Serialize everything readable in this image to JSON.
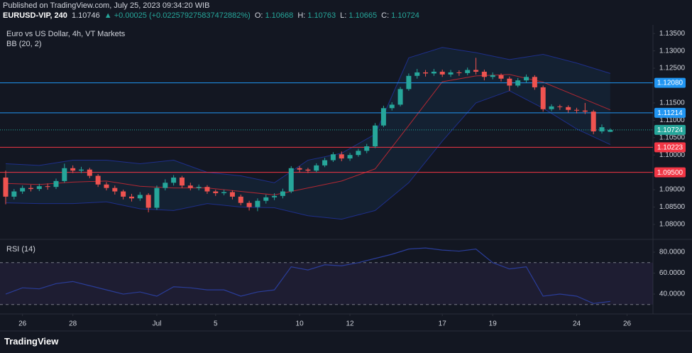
{
  "header": {
    "published": "Published on TradingView.com, July 25, 2023 09:34:20 WIB",
    "symbol": "EURUSD-VIP, 240",
    "last": "1.10746",
    "change": "▲ +0.00025 (+0.022579275837472882%)",
    "ohlc": [
      {
        "label": "O:",
        "value": "1.10668"
      },
      {
        "label": "H:",
        "value": "1.10763"
      },
      {
        "label": "L:",
        "value": "1.10665"
      },
      {
        "label": "C:",
        "value": "1.10724"
      }
    ]
  },
  "footer": {
    "brand": "TradingView"
  },
  "chart_data": [
    {
      "type": "candlestick",
      "title": "Euro vs US Dollar, 4h, VT Markets",
      "indicator": "BB (20, 2)",
      "up_color": "#26a69a",
      "down_color": "#ef5350",
      "open": [
        1.0935,
        1.088,
        1.0895,
        1.0905,
        1.0902,
        1.091,
        1.0908,
        1.0925,
        1.0962,
        1.0955,
        1.0958,
        1.094,
        1.0915,
        1.0905,
        1.0895,
        1.088,
        1.0875,
        1.0885,
        1.0848,
        1.0905,
        1.092,
        1.0935,
        1.0912,
        1.0905,
        1.0908,
        1.0895,
        1.089,
        1.0893,
        1.088,
        1.0862,
        1.085,
        1.0868,
        1.0878,
        1.0882,
        1.0895,
        1.0962,
        1.0958,
        1.0955,
        1.097,
        1.0985,
        1.1002,
        1.099,
        1.1,
        1.1012,
        1.1025,
        1.1085,
        1.1135,
        1.1145,
        1.119,
        1.1228,
        1.1238,
        1.1235,
        1.124,
        1.1232,
        1.1238,
        1.1236,
        1.1245,
        1.124,
        1.1225,
        1.123,
        1.122,
        1.12,
        1.1215,
        1.1225,
        1.1195,
        1.1132,
        1.114,
        1.1138,
        1.113,
        1.1128,
        1.1125,
        1.1068,
        1.10668
      ],
      "high": [
        1.0955,
        1.0902,
        1.0912,
        1.0914,
        1.0917,
        1.0918,
        1.0932,
        1.0975,
        1.097,
        1.0966,
        1.0963,
        1.0945,
        1.0922,
        1.0912,
        1.09,
        1.0888,
        1.0893,
        1.089,
        1.0912,
        1.093,
        1.0942,
        1.094,
        1.092,
        1.0915,
        1.0913,
        1.09,
        1.09,
        1.0898,
        1.0886,
        1.0868,
        1.0875,
        1.0886,
        1.089,
        1.0903,
        1.0968,
        1.0968,
        1.0963,
        1.0976,
        1.0992,
        1.1008,
        1.101,
        1.1006,
        1.1018,
        1.1032,
        1.1092,
        1.1142,
        1.1152,
        1.1196,
        1.1235,
        1.1248,
        1.1245,
        1.1248,
        1.1246,
        1.1245,
        1.1244,
        1.1252,
        1.128,
        1.1246,
        1.1238,
        1.1235,
        1.1226,
        1.1222,
        1.1232,
        1.123,
        1.12,
        1.1146,
        1.1145,
        1.1143,
        1.1136,
        1.115,
        1.113,
        1.1088,
        1.10763
      ],
      "low": [
        1.0858,
        1.0872,
        1.0888,
        1.0895,
        1.0896,
        1.09,
        1.0902,
        1.092,
        1.0948,
        1.0948,
        1.0933,
        1.0908,
        1.0898,
        1.0886,
        1.0872,
        1.0866,
        1.0868,
        1.0835,
        1.0842,
        1.0898,
        1.0912,
        1.0905,
        1.0898,
        1.0898,
        1.0888,
        1.0882,
        1.0884,
        1.0872,
        1.0855,
        1.084,
        1.0838,
        1.086,
        1.087,
        1.0875,
        1.089,
        1.095,
        1.0948,
        1.095,
        1.0965,
        1.098,
        1.0982,
        1.0983,
        1.0995,
        1.1005,
        1.102,
        1.108,
        1.1128,
        1.114,
        1.1185,
        1.122,
        1.1226,
        1.1228,
        1.1225,
        1.1225,
        1.1228,
        1.123,
        1.1232,
        1.1215,
        1.1218,
        1.1212,
        1.1185,
        1.1195,
        1.1208,
        1.1188,
        1.1125,
        1.1126,
        1.113,
        1.1122,
        1.112,
        1.1118,
        1.106,
        1.1062,
        1.10665
      ],
      "close": [
        1.088,
        1.0895,
        1.0905,
        1.0902,
        1.091,
        1.0908,
        1.0925,
        1.0962,
        1.0955,
        1.0958,
        1.094,
        1.0915,
        1.0905,
        1.0895,
        1.088,
        1.0875,
        1.0885,
        1.0848,
        1.0905,
        1.092,
        1.0935,
        1.0912,
        1.0905,
        1.0908,
        1.0895,
        1.089,
        1.0893,
        1.088,
        1.0862,
        1.085,
        1.0868,
        1.0878,
        1.0882,
        1.0895,
        1.0962,
        1.0958,
        1.0955,
        1.097,
        1.0985,
        1.1002,
        1.099,
        1.1,
        1.1012,
        1.1025,
        1.1085,
        1.1135,
        1.1145,
        1.119,
        1.1228,
        1.1238,
        1.1235,
        1.124,
        1.1232,
        1.1238,
        1.1236,
        1.1245,
        1.124,
        1.1225,
        1.123,
        1.122,
        1.12,
        1.1215,
        1.1225,
        1.1195,
        1.1132,
        1.114,
        1.1138,
        1.113,
        1.1128,
        1.1125,
        1.1068,
        1.108,
        1.10724
      ],
      "bands": {
        "x": [
          0,
          4,
          8,
          12,
          16,
          20,
          24,
          28,
          32,
          36,
          40,
          44,
          48,
          52,
          56,
          60,
          64,
          68,
          72
        ],
        "fill": "rgba(33,150,243,0.08)",
        "series": [
          {
            "role": "upper",
            "color": "#1e2f8a",
            "values": [
              1.0975,
              1.097,
              1.0985,
              1.0985,
              1.0975,
              1.0985,
              1.095,
              1.094,
              1.092,
              1.0985,
              1.1005,
              1.106,
              1.128,
              1.131,
              1.1295,
              1.1275,
              1.129,
              1.1265,
              1.1235
            ]
          },
          {
            "role": "middle",
            "color": "#b22833",
            "values": [
              1.0918,
              1.0915,
              1.0922,
              1.0925,
              1.091,
              1.0905,
              1.0905,
              1.0895,
              1.0885,
              1.0905,
              1.0925,
              1.096,
              1.1085,
              1.1211,
              1.1228,
              1.1232,
              1.121,
              1.117,
              1.113
            ]
          },
          {
            "role": "lower",
            "color": "#1e2f8a",
            "values": [
              1.0862,
              1.086,
              1.086,
              1.0865,
              1.0845,
              1.084,
              1.086,
              1.085,
              1.0848,
              1.0825,
              1.0815,
              1.084,
              1.092,
              1.104,
              1.115,
              1.1185,
              1.1135,
              1.1075,
              1.103
            ]
          }
        ]
      },
      "levels": [
        {
          "value": 1.1208,
          "label": "1.12080",
          "color": "#2196f3"
        },
        {
          "value": 1.11214,
          "label": "1.11214",
          "color": "#2196f3"
        },
        {
          "value": 1.10724,
          "label": "1.10724",
          "color": "#26a69a",
          "dotted": true
        },
        {
          "value": 1.10223,
          "label": "1.10223",
          "color": "#f23645"
        },
        {
          "value": 1.095,
          "label": "1.09500",
          "color": "#f23645"
        }
      ],
      "xlim": [
        0,
        77
      ],
      "xticks": [
        {
          "value": 2,
          "label": "26"
        },
        {
          "value": 8,
          "label": "28"
        },
        {
          "value": 18,
          "label": "Jul"
        },
        {
          "value": 25,
          "label": "5"
        },
        {
          "value": 35,
          "label": "10"
        },
        {
          "value": 41,
          "label": "12"
        },
        {
          "value": 52,
          "label": "17"
        },
        {
          "value": 58,
          "label": "19"
        },
        {
          "value": 68,
          "label": "24"
        },
        {
          "value": 74,
          "label": "26"
        }
      ],
      "ylim": [
        1.0761,
        1.1375
      ],
      "yticks": [
        {
          "value": 1.135,
          "label": "1.13500"
        },
        {
          "value": 1.13,
          "label": "1.13000"
        },
        {
          "value": 1.125,
          "label": "1.12500"
        },
        {
          "value": 1.115,
          "label": "1.11500"
        },
        {
          "value": 1.11,
          "label": "1.11000"
        },
        {
          "value": 1.105,
          "label": "1.10500"
        },
        {
          "value": 1.1,
          "label": "1.10000"
        },
        {
          "value": 1.09,
          "label": "1.09000"
        },
        {
          "value": 1.085,
          "label": "1.08500"
        },
        {
          "value": 1.08,
          "label": "1.08000"
        }
      ]
    },
    {
      "type": "line",
      "title": "RSI (14)",
      "color": "#2a3d99",
      "x": [
        0,
        2,
        4,
        6,
        8,
        10,
        12,
        14,
        16,
        18,
        20,
        22,
        24,
        26,
        28,
        30,
        32,
        34,
        36,
        38,
        40,
        42,
        44,
        46,
        48,
        50,
        52,
        54,
        56,
        58,
        60,
        62,
        64,
        66,
        68,
        70,
        72
      ],
      "values": [
        40,
        46,
        45,
        50,
        52,
        48,
        44,
        40,
        42,
        38,
        47,
        46,
        44,
        44,
        38,
        42,
        44,
        66,
        63,
        68,
        67,
        70,
        74,
        78,
        83,
        84,
        82,
        81,
        83,
        70,
        64,
        66,
        38,
        40,
        38,
        31,
        33
      ],
      "levels": [
        70,
        30
      ],
      "band_fill": "rgba(126,87,194,0.1)",
      "xlim": [
        0,
        77
      ],
      "ylim": [
        22.4,
        90.2
      ],
      "yticks": [
        {
          "value": 80,
          "label": "80.0000"
        },
        {
          "value": 60,
          "label": "60.0000"
        },
        {
          "value": 40,
          "label": "40.0000"
        }
      ]
    }
  ]
}
